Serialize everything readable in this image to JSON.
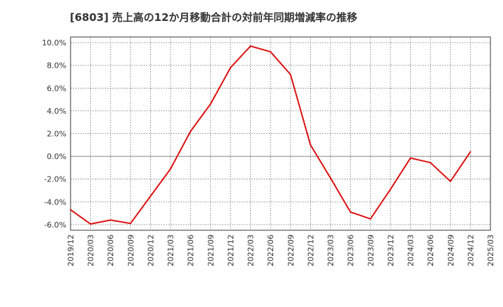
{
  "chart_data": {
    "type": "line",
    "title": "[6803]  売上高の12か月移動合計の対前年同期増減率の推移",
    "xlabel": "",
    "ylabel": "",
    "x": [
      "2019/12",
      "2020/03",
      "2020/06",
      "2020/09",
      "2020/12",
      "2021/03",
      "2021/06",
      "2021/09",
      "2021/12",
      "2022/03",
      "2022/06",
      "2022/09",
      "2022/12",
      "2023/03",
      "2023/06",
      "2023/09",
      "2023/12",
      "2024/03",
      "2024/06",
      "2024/09",
      "2024/12",
      "2025/03"
    ],
    "series": [
      {
        "name": "対前年同期増減率",
        "color": "#dd1111",
        "values": [
          -4.7,
          -5.95,
          -5.6,
          -5.9,
          -3.5,
          -1.1,
          2.2,
          4.6,
          7.8,
          9.7,
          9.2,
          7.2,
          1.0,
          -1.9,
          -4.9,
          -5.5,
          -2.9,
          -0.15,
          -0.55,
          -2.2,
          0.4,
          null
        ]
      }
    ],
    "yticks": [
      -6,
      -4,
      -2,
      0,
      2,
      4,
      6,
      8,
      10
    ],
    "ytick_labels": [
      "-6.0%",
      "-4.0%",
      "-2.0%",
      "0.0%",
      "2.0%",
      "4.0%",
      "6.0%",
      "8.0%",
      "10.0%"
    ],
    "ylim": [
      -6.5,
      10.5
    ],
    "grid": true
  }
}
